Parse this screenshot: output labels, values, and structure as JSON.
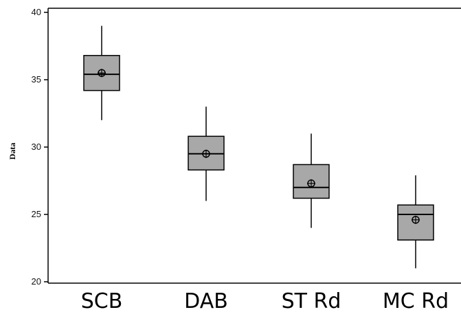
{
  "chart_data": {
    "type": "boxplot",
    "title": "",
    "xlabel": "",
    "ylabel": "Data",
    "ylim": [
      20,
      40
    ],
    "yticks": [
      20,
      25,
      30,
      35,
      40
    ],
    "grid": false,
    "legend": "none",
    "box_color": "#a8a8a8",
    "categories": [
      "SCB",
      "DAB",
      "ST Rd",
      "MC Rd"
    ],
    "boxes": [
      {
        "category": "SCB",
        "min": 32,
        "q1": 34.2,
        "median": 35.4,
        "q3": 36.8,
        "max": 39,
        "mean": 35.5
      },
      {
        "category": "DAB",
        "min": 26,
        "q1": 28.3,
        "median": 29.5,
        "q3": 30.8,
        "max": 33,
        "mean": 29.5
      },
      {
        "category": "ST Rd",
        "min": 24,
        "q1": 26.2,
        "median": 27,
        "q3": 28.7,
        "max": 31,
        "mean": 27.3
      },
      {
        "category": "MC Rd",
        "min": 21,
        "q1": 23.1,
        "median": 25,
        "q3": 25.7,
        "max": 27.9,
        "mean": 24.6
      }
    ]
  }
}
